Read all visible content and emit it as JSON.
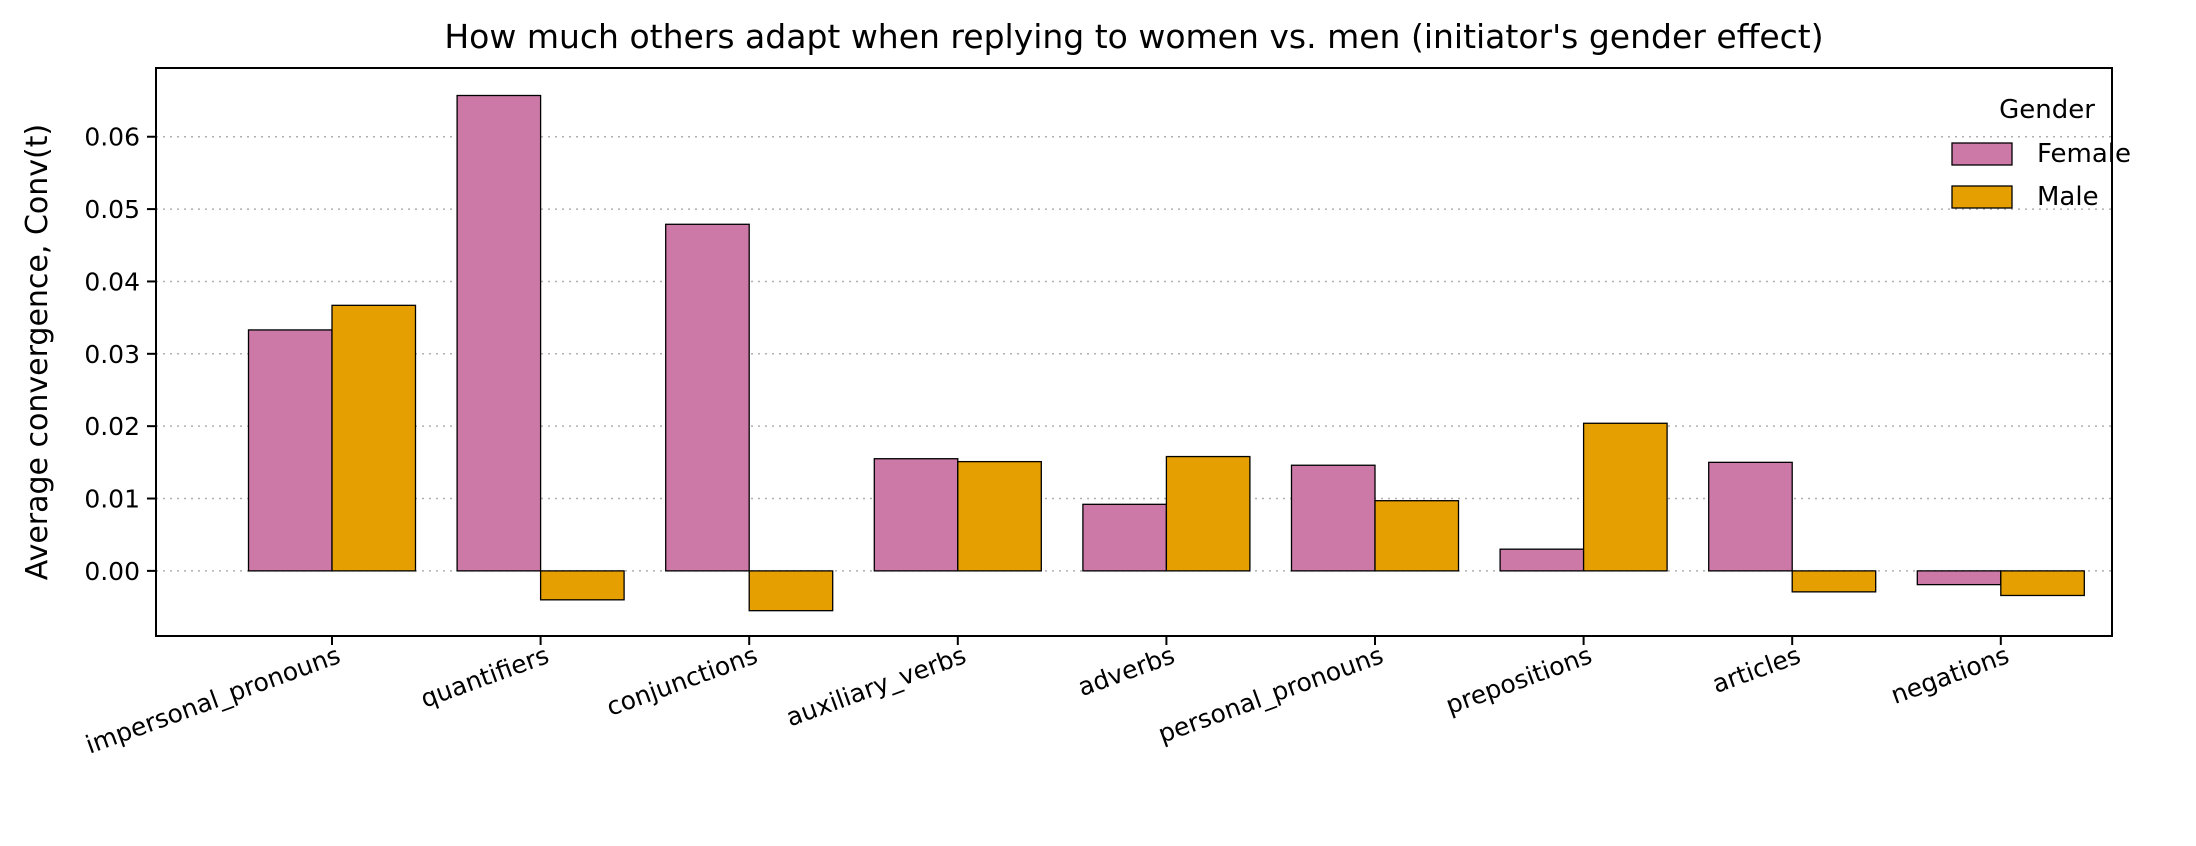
{
  "chart_data": {
    "type": "bar",
    "title": "How much others adapt when replying to women vs. men (initiator's gender effect)",
    "xlabel": "",
    "ylabel": "Average convergence, Conv(t)",
    "categories": [
      "impersonal_pronouns",
      "quantifiers",
      "conjunctions",
      "auxiliary_verbs",
      "adverbs",
      "personal_pronouns",
      "prepositions",
      "articles",
      "negations"
    ],
    "series": [
      {
        "name": "Female",
        "color": "#cc79a7",
        "values": [
          0.0333,
          0.0657,
          0.0479,
          0.0155,
          0.0092,
          0.0146,
          0.003,
          0.015,
          -0.0019
        ]
      },
      {
        "name": "Male",
        "color": "#e69f00",
        "values": [
          0.0367,
          -0.004,
          -0.0055,
          0.0151,
          0.0158,
          0.0097,
          0.0204,
          -0.0029,
          -0.0034
        ]
      }
    ],
    "ylim": [
      -0.009,
      0.0695
    ],
    "yticks": [
      "0.00",
      "0.01",
      "0.02",
      "0.03",
      "0.04",
      "0.05",
      "0.06"
    ],
    "grid": "y-dotted",
    "legend": {
      "title": "Gender",
      "placement": "top-right"
    }
  }
}
